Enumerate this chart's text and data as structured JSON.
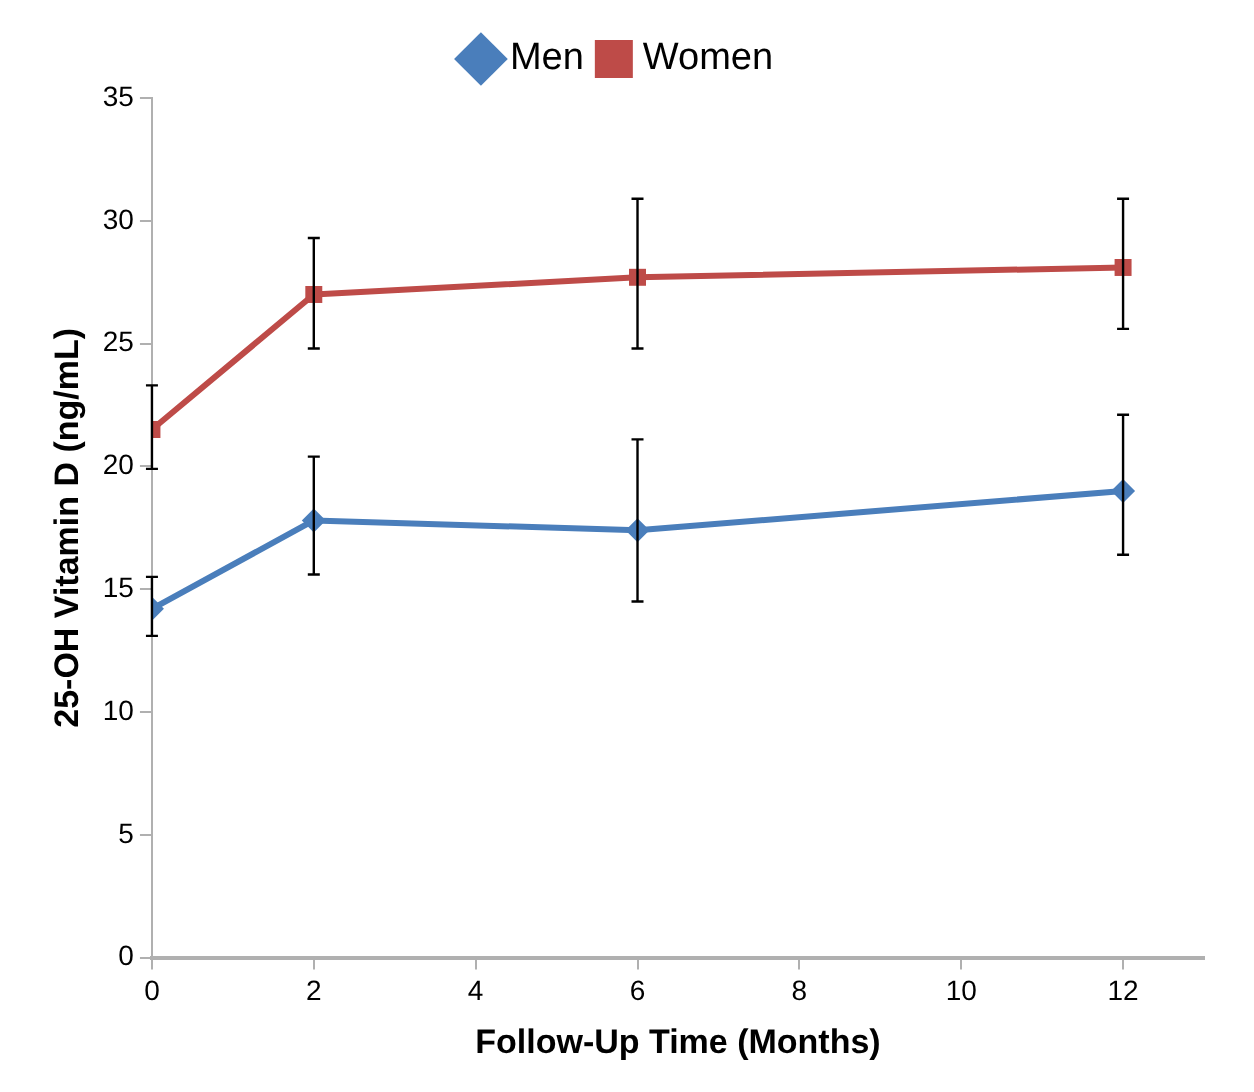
{
  "chart_data": {
    "type": "line",
    "xlabel": "Follow-Up Time (Months)",
    "ylabel": "25-OH Vitamin D (ng/mL)",
    "x": [
      0,
      2,
      6,
      12
    ],
    "series": [
      {
        "name": "Men",
        "color": "#4a7ebb",
        "marker": "diamond",
        "values": [
          14.2,
          17.8,
          17.4,
          19.0
        ],
        "errors": [
          [
            13.1,
            15.5
          ],
          [
            15.6,
            20.4
          ],
          [
            14.5,
            21.1
          ],
          [
            16.4,
            22.1
          ]
        ]
      },
      {
        "name": "Women",
        "color": "#be4b48",
        "marker": "square",
        "values": [
          21.5,
          27.0,
          27.7,
          28.1
        ],
        "errors": [
          [
            19.9,
            23.3
          ],
          [
            24.8,
            29.3
          ],
          [
            24.8,
            30.9
          ],
          [
            25.6,
            30.9
          ]
        ]
      }
    ],
    "xlim": [
      0,
      13
    ],
    "xticks": [
      0,
      2,
      4,
      6,
      8,
      10,
      12
    ],
    "ylim": [
      0,
      35
    ],
    "yticks": [
      0,
      5,
      10,
      15,
      20,
      25,
      30,
      35
    ],
    "grid": false,
    "legend": "top",
    "line_style": "solid"
  }
}
